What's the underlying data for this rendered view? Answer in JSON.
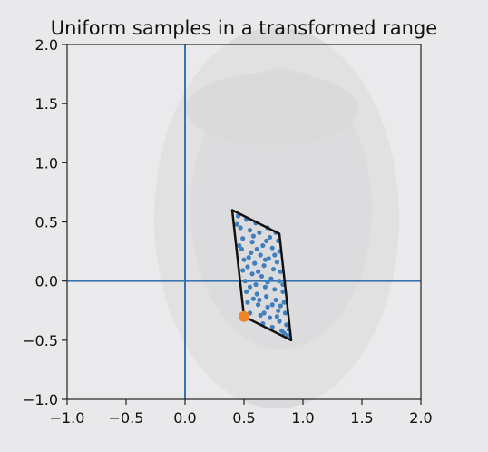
{
  "chart_data": {
    "type": "scatter",
    "title": "Uniform samples in a transformed range",
    "xlabel": "",
    "ylabel": "",
    "xlim": [
      -1.0,
      2.0
    ],
    "ylim": [
      -1.0,
      2.0
    ],
    "xticks": [
      "−1.0",
      "−0.5",
      "0.0",
      "0.5",
      "1.0",
      "1.5",
      "2.0"
    ],
    "xtick_values": [
      -1.0,
      -0.5,
      0.0,
      0.5,
      1.0,
      1.5,
      2.0
    ],
    "yticks": [
      "−1.0",
      "−0.5",
      "0.0",
      "0.5",
      "1.0",
      "1.5",
      "2.0"
    ],
    "ytick_values": [
      -1.0,
      -0.5,
      0.0,
      0.5,
      1.0,
      1.5,
      2.0
    ],
    "grid": false,
    "reference_lines": {
      "x": 0.0,
      "y": 0.0,
      "color": "#3a74b0"
    },
    "region": {
      "vertices": [
        [
          0.4,
          0.6
        ],
        [
          0.8,
          0.4
        ],
        [
          0.9,
          -0.5
        ],
        [
          0.5,
          -0.3
        ]
      ],
      "color": "#111111"
    },
    "origin_point": {
      "x": 0.5,
      "y": -0.3,
      "color": "#f0862a"
    },
    "samples": {
      "color": "#3f7fbd",
      "points": [
        [
          0.45,
          0.55
        ],
        [
          0.52,
          0.52
        ],
        [
          0.6,
          0.49
        ],
        [
          0.7,
          0.45
        ],
        [
          0.77,
          0.41
        ],
        [
          0.47,
          0.45
        ],
        [
          0.55,
          0.43
        ],
        [
          0.63,
          0.41
        ],
        [
          0.72,
          0.37
        ],
        [
          0.79,
          0.34
        ],
        [
          0.49,
          0.36
        ],
        [
          0.57,
          0.33
        ],
        [
          0.66,
          0.3
        ],
        [
          0.74,
          0.28
        ],
        [
          0.8,
          0.25
        ],
        [
          0.48,
          0.27
        ],
        [
          0.56,
          0.24
        ],
        [
          0.64,
          0.22
        ],
        [
          0.71,
          0.19
        ],
        [
          0.78,
          0.16
        ],
        [
          0.5,
          0.18
        ],
        [
          0.59,
          0.15
        ],
        [
          0.67,
          0.13
        ],
        [
          0.75,
          0.1
        ],
        [
          0.81,
          0.08
        ],
        [
          0.49,
          0.09
        ],
        [
          0.57,
          0.06
        ],
        [
          0.65,
          0.04
        ],
        [
          0.73,
          0.02
        ],
        [
          0.8,
          0.0
        ],
        [
          0.51,
          0.0
        ],
        [
          0.6,
          -0.03
        ],
        [
          0.68,
          -0.05
        ],
        [
          0.76,
          -0.07
        ],
        [
          0.83,
          -0.09
        ],
        [
          0.52,
          -0.09
        ],
        [
          0.61,
          -0.11
        ],
        [
          0.69,
          -0.13
        ],
        [
          0.77,
          -0.16
        ],
        [
          0.84,
          -0.18
        ],
        [
          0.53,
          -0.18
        ],
        [
          0.62,
          -0.2
        ],
        [
          0.7,
          -0.22
        ],
        [
          0.79,
          -0.25
        ],
        [
          0.85,
          -0.27
        ],
        [
          0.55,
          -0.27
        ],
        [
          0.64,
          -0.29
        ],
        [
          0.72,
          -0.31
        ],
        [
          0.8,
          -0.34
        ],
        [
          0.86,
          -0.37
        ],
        [
          0.66,
          -0.36
        ],
        [
          0.74,
          -0.39
        ],
        [
          0.82,
          -0.42
        ],
        [
          0.87,
          -0.46
        ],
        [
          0.84,
          -0.44
        ],
        [
          0.44,
          0.48
        ],
        [
          0.58,
          0.38
        ],
        [
          0.69,
          0.34
        ],
        [
          0.53,
          0.12
        ],
        [
          0.62,
          0.08
        ],
        [
          0.7,
          -0.01
        ],
        [
          0.58,
          -0.15
        ],
        [
          0.74,
          -0.2
        ],
        [
          0.67,
          -0.27
        ],
        [
          0.78,
          -0.3
        ],
        [
          0.46,
          0.3
        ],
        [
          0.54,
          0.2
        ],
        [
          0.61,
          0.27
        ],
        [
          0.68,
          0.18
        ],
        [
          0.76,
          0.22
        ],
        [
          0.83,
          -0.03
        ],
        [
          0.55,
          -0.05
        ],
        [
          0.63,
          -0.16
        ],
        [
          0.81,
          -0.21
        ],
        [
          0.88,
          -0.41
        ]
      ]
    }
  }
}
